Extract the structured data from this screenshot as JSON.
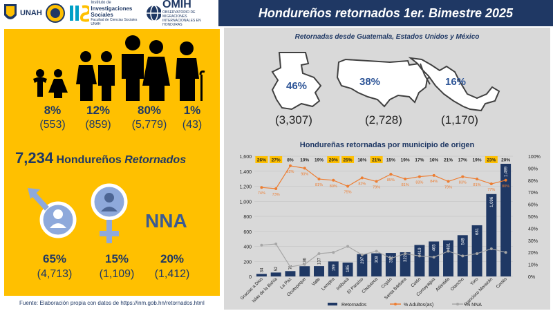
{
  "header": {
    "title": "Hondureños retornados 1er. Bimestre 2025",
    "logos": {
      "unah": "UNAH",
      "iis_line1": "Instituto de",
      "iis_line2": "Investigaciones",
      "iis_line3": "Sociales",
      "iis_line4": "Facultad de Ciencias Sociales UNAH",
      "omih": "OMIH",
      "omih_sub1": "OBSERVATORIO DE MIGRACIONES",
      "omih_sub2": "INTERNACIONALES EN HONDURAS"
    }
  },
  "age_groups": [
    {
      "pct": "8%",
      "count": "(553)",
      "icon": "children-icon"
    },
    {
      "pct": "12%",
      "count": "(859)",
      "icon": "youth-icon"
    },
    {
      "pct": "80%",
      "count": "(5,779)",
      "icon": "adults-icon"
    },
    {
      "pct": "1%",
      "count": "(43)",
      "icon": "elder-icon"
    }
  ],
  "total": {
    "number": "7,234",
    "text": "Hondureños",
    "italic": "Retornados"
  },
  "sex": [
    {
      "pct": "65%",
      "count": "(4,713)",
      "icon": "male-symbol-icon"
    },
    {
      "pct": "15%",
      "count": "(1,109)",
      "icon": "female-symbol-icon"
    },
    {
      "pct": "20%",
      "count": "(1,412)",
      "label": "NNA"
    }
  ],
  "source": "Fuente: Elaboración propia con datos de https://inm.gob.hn/retornados.html",
  "maps": {
    "title": "Retornadas desde Guatemala, Estados Unidos y México",
    "countries": [
      {
        "pct": "46%",
        "count": "(3,307)",
        "icon": "guatemala-map-icon"
      },
      {
        "pct": "38%",
        "count": "(2,728)",
        "icon": "usa-map-icon"
      },
      {
        "pct": "16%",
        "count": "(1,170)",
        "icon": "mexico-map-icon"
      }
    ]
  },
  "colors": {
    "navy": "#1f3864",
    "gold": "#ffc000",
    "orange": "#ed7d31",
    "gray": "#a6a6a6",
    "panel": "#d9d9d9"
  },
  "chart_data": {
    "type": "bar",
    "title": "Hondureñas retornadas por municipio de origen",
    "categories": [
      "Gracias a Dios",
      "Islas de la Bahía",
      "La Paz",
      "Ocotepeque",
      "Valle",
      "Lempira",
      "Intibucá",
      "El Paraíso",
      "Choluteca",
      "Copán",
      "Santa Bárbara",
      "Colón",
      "Comayagua",
      "Atlántida",
      "Olancho",
      "Yoro",
      "Francisco Morazán",
      "Cortés"
    ],
    "series": [
      {
        "name": "Retornados",
        "type": "bar",
        "axis": "left",
        "values": [
          34,
          52,
          71,
          136,
          137,
          199,
          185,
          297,
          308,
          312,
          322,
          419,
          465,
          481,
          549,
          681,
          1096,
          1499
        ],
        "labels": [
          "34",
          "52",
          "71",
          "136",
          "137",
          "199",
          "185",
          "297",
          "308",
          "312",
          "322",
          "419",
          "465",
          "481",
          "549",
          "681",
          "1,096",
          "1,499"
        ]
      },
      {
        "name": "% Adultos(as)",
        "type": "line",
        "axis": "right",
        "values": [
          74,
          73,
          92,
          90,
          81,
          80,
          75,
          82,
          79,
          85,
          81,
          83,
          84,
          79,
          83,
          81,
          77,
          80
        ],
        "labels": [
          "74%",
          "73%",
          "92%",
          "90%",
          "81%",
          "80%",
          "75%",
          "82%",
          "79%",
          "85%",
          "81%",
          "83%",
          "84%",
          "79%",
          "83%",
          "81%",
          "77%",
          "80%"
        ]
      },
      {
        "name": "% NNA",
        "type": "line",
        "axis": "right",
        "values": [
          26,
          27,
          8,
          10,
          19,
          20,
          25,
          18,
          21,
          15,
          19,
          17,
          16,
          21,
          17,
          19,
          23,
          20
        ],
        "labels": [
          "26%",
          "27%",
          "8%",
          "10%",
          "19%",
          "20%",
          "25%",
          "18%",
          "21%",
          "15%",
          "19%",
          "17%",
          "16%",
          "21%",
          "17%",
          "19%",
          "23%",
          "20%"
        ],
        "highlighted": [
          true,
          true,
          false,
          false,
          false,
          true,
          true,
          false,
          true,
          false,
          false,
          false,
          false,
          false,
          false,
          false,
          true,
          false
        ]
      }
    ],
    "y_left": {
      "min": 0,
      "max": 1600,
      "ticks": [
        "0",
        "200",
        "400",
        "600",
        "800",
        "1,000",
        "1,200",
        "1,400",
        "1,600"
      ]
    },
    "y_right": {
      "min": 0,
      "max": 100,
      "ticks": [
        "0%",
        "10%",
        "20%",
        "30%",
        "40%",
        "50%",
        "60%",
        "70%",
        "80%",
        "90%",
        "100%"
      ]
    },
    "legend": {
      "position": "bottom",
      "items": [
        "Retornados",
        "% Adultos(as)",
        "% NNA"
      ]
    }
  }
}
